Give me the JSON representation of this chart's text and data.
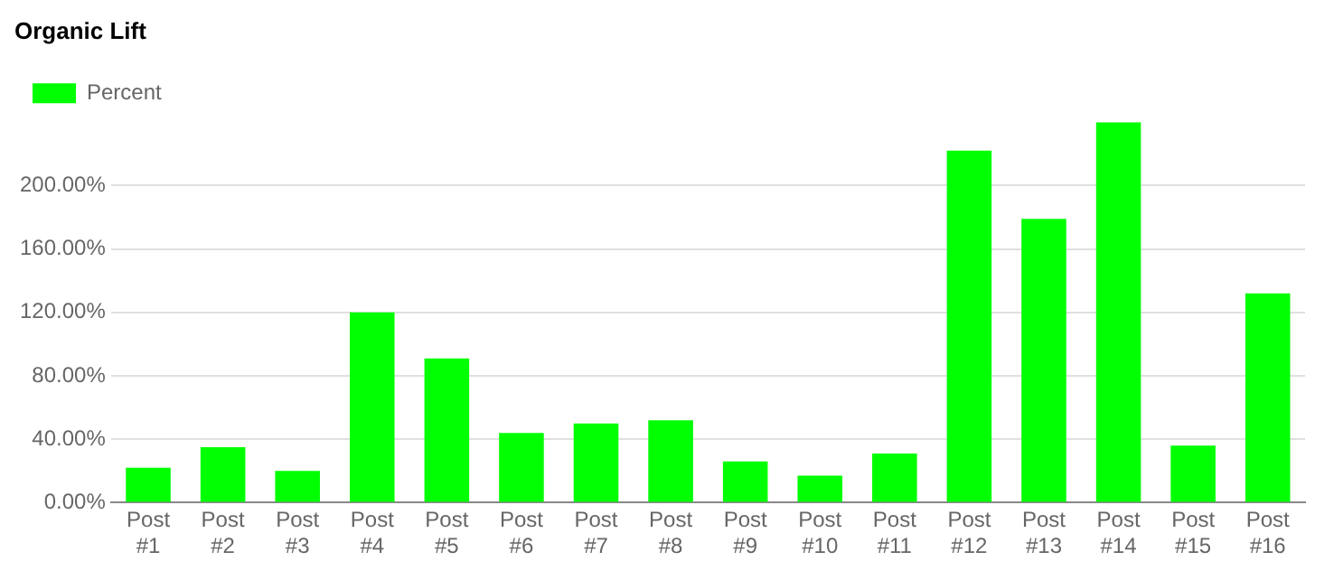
{
  "chart_data": {
    "type": "bar",
    "title": "Organic Lift",
    "categories": [
      "Post #1",
      "Post #2",
      "Post #3",
      "Post #4",
      "Post #5",
      "Post #6",
      "Post #7",
      "Post #8",
      "Post #9",
      "Post #10",
      "Post #11",
      "Post #12",
      "Post #13",
      "Post #14",
      "Post #15",
      "Post #16"
    ],
    "series": [
      {
        "name": "Percent",
        "color": "#00ff00",
        "values": [
          22,
          35,
          20,
          120,
          91,
          44,
          50,
          52,
          26,
          17,
          31,
          222,
          179,
          240,
          36,
          132
        ]
      }
    ],
    "ylim": [
      0,
      240
    ],
    "yticks": [
      {
        "value": 0,
        "label": "0.00%"
      },
      {
        "value": 40,
        "label": "40.00%"
      },
      {
        "value": 80,
        "label": "80.00%"
      },
      {
        "value": 120,
        "label": "120.00%"
      },
      {
        "value": 160,
        "label": "160.00%"
      },
      {
        "value": 200,
        "label": "200.00%"
      }
    ],
    "grid": "y",
    "legend": "top left"
  }
}
